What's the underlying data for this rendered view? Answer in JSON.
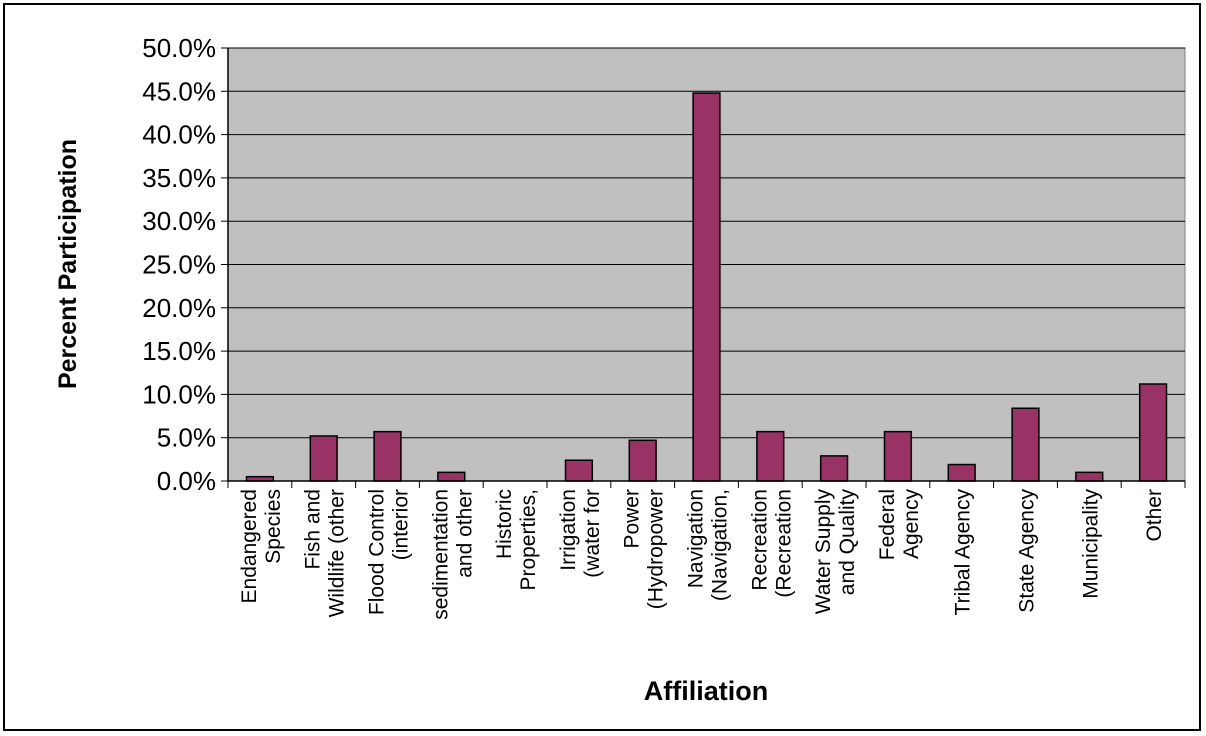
{
  "chart_data": {
    "type": "bar",
    "xlabel": "Affiliation",
    "ylabel": "Percent Participation",
    "ylim": [
      0,
      50
    ],
    "ytick_step": 5,
    "ytick_format": "percent-1-decimal",
    "grid": true,
    "legend": "none",
    "categories": [
      [
        "Endangered",
        "Species"
      ],
      [
        "Fish and",
        "Wildlife (other"
      ],
      [
        "Flood Control",
        "(interior"
      ],
      [
        "sedimentation",
        "and other"
      ],
      [
        "Historic",
        "Properties,"
      ],
      [
        "Irrigation",
        "(water for"
      ],
      [
        "Power",
        "(Hydropower"
      ],
      [
        "Navigation",
        "(Navigation,"
      ],
      [
        "Recreation",
        "(Recreation"
      ],
      [
        "Water Supply",
        "and Quality"
      ],
      [
        "Federal",
        "Agency"
      ],
      [
        "Tribal Agency"
      ],
      [
        "State Agency"
      ],
      [
        "Municipality"
      ],
      [
        "Other"
      ]
    ],
    "values": [
      0.5,
      5.2,
      5.7,
      1.0,
      0.0,
      2.4,
      4.7,
      44.8,
      5.7,
      2.9,
      5.7,
      1.9,
      8.4,
      1.0,
      11.2
    ],
    "bar_color": "#993366",
    "plot_background": "#c0c0c0"
  }
}
